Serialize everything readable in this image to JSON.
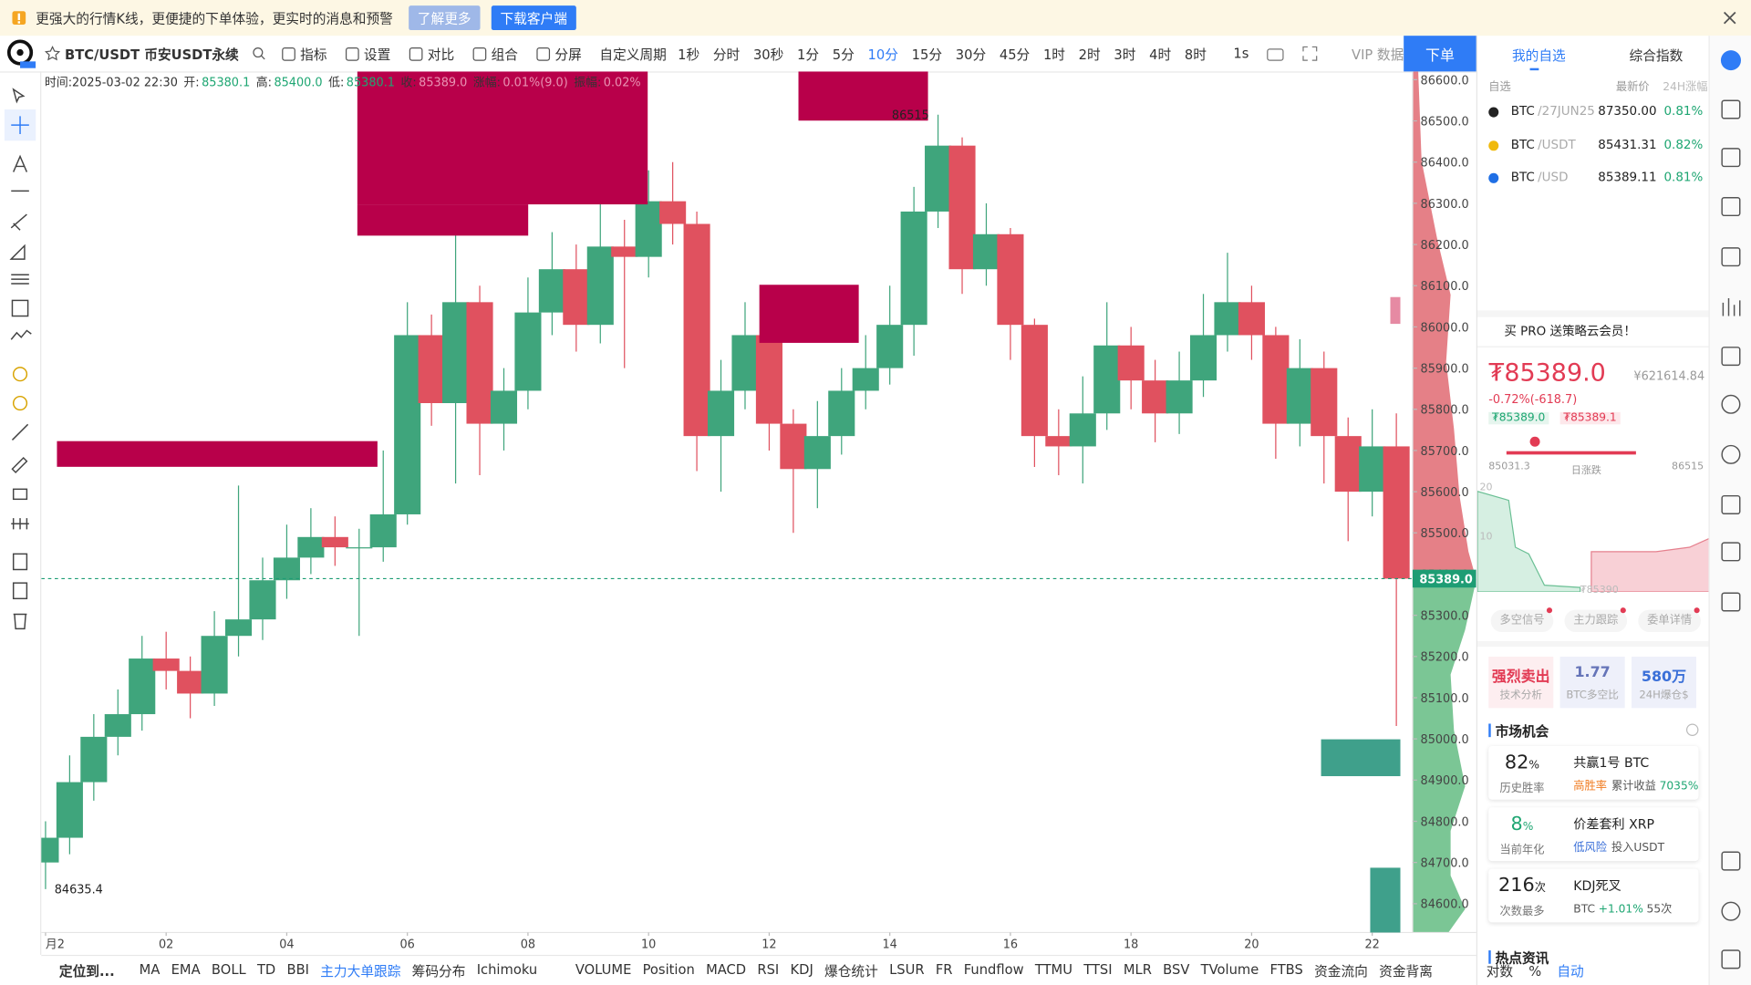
{
  "banner": {
    "text": "更强大的行情K线，更便捷的下单体验，更实时的消息和预警",
    "learn_more": "了解更多",
    "download": "下载客户端"
  },
  "toolbar": {
    "symbol": "BTC/USDT 币安USDT永续",
    "tools": [
      "指标",
      "设置",
      "对比",
      "组合",
      "分屏"
    ],
    "custom_period": "自定义周期",
    "periods": [
      "1秒",
      "分时",
      "30秒",
      "1分",
      "5分",
      "10分",
      "15分",
      "30分",
      "45分",
      "1时",
      "2时",
      "3时",
      "4时",
      "8时"
    ],
    "active_period": "10分",
    "realtime": "1s",
    "vip": "VIP 数据",
    "order": "下单"
  },
  "chart_info": {
    "time": "时间:2025-03-02 22:30",
    "open_label": "开:",
    "open": "85380.1",
    "high_label": "高:",
    "high": "85400.0",
    "low_label": "低:",
    "low": "85380.1",
    "close_label": "收:",
    "close": "85389.0",
    "change_label": "涨幅:",
    "change": "0.01%(9.0)",
    "amp_label": "振幅:",
    "amp": "0.02%"
  },
  "chart_data": {
    "type": "candlestick",
    "up_color": "#3fa57c",
    "down_color": "#e0515f",
    "grid": false,
    "x": [
      0,
      0.4,
      0.8,
      1.2,
      1.6,
      2,
      2.4,
      2.8,
      3.2,
      3.6,
      4,
      4.4,
      4.8,
      5.2,
      5.6,
      6,
      6.4,
      6.8,
      7.2,
      7.6,
      8,
      8.4,
      8.8,
      9.2,
      9.6,
      10,
      10.4,
      10.8,
      11.2,
      11.6,
      12,
      12.4,
      12.8,
      13.2,
      13.6,
      14,
      14.4,
      14.8,
      15.2,
      15.6,
      16,
      16.4,
      16.8,
      17.2,
      17.6,
      18,
      18.4,
      18.8,
      19.2,
      19.6,
      20,
      20.4,
      20.8,
      21.2,
      21.6,
      22,
      22.4
    ],
    "open": [
      84700,
      84760,
      84895,
      85005,
      85060,
      85195,
      85165,
      85110,
      85250,
      85290,
      85385,
      85440,
      85490,
      85465,
      85465,
      85545,
      85980,
      85815,
      86060,
      85765,
      85845,
      86035,
      86140,
      86005,
      86195,
      86170,
      86305,
      86250,
      85735,
      85845,
      85980,
      85765,
      85655,
      85735,
      85845,
      85900,
      86005,
      86280,
      86440,
      86140,
      86225,
      86005,
      85735,
      85710,
      85790,
      85955,
      85870,
      85790,
      85870,
      85980,
      86060,
      85980,
      85765,
      85900,
      85735,
      85600,
      85710
    ],
    "high": [
      84800,
      84960,
      85060,
      85120,
      85250,
      85260,
      85200,
      85310,
      85615,
      85440,
      85520,
      85560,
      85540,
      85510,
      85700,
      86060,
      86030,
      86250,
      86100,
      85900,
      86120,
      86230,
      86200,
      86320,
      86260,
      86380,
      86400,
      86280,
      85920,
      86060,
      86000,
      85800,
      85820,
      85900,
      85980,
      86100,
      86340,
      86515,
      86460,
      86300,
      86240,
      86020,
      85800,
      85880,
      86060,
      86000,
      85920,
      85940,
      86080,
      86180,
      86100,
      86000,
      85970,
      85940,
      85780,
      85800,
      85790
    ],
    "low": [
      84635.4,
      84720,
      84850,
      84960,
      85020,
      85120,
      85050,
      85080,
      85200,
      85240,
      85340,
      85400,
      85420,
      85250,
      85430,
      85520,
      85760,
      85620,
      85640,
      85700,
      85800,
      85980,
      85940,
      85960,
      85900,
      86120,
      86200,
      85650,
      85600,
      85800,
      85700,
      85500,
      85560,
      85690,
      85800,
      85860,
      85930,
      86240,
      86080,
      86100,
      85920,
      85660,
      85640,
      85620,
      85750,
      85800,
      85720,
      85740,
      85830,
      85940,
      85920,
      85680,
      85710,
      85620,
      85480,
      85540,
      85031.3
    ],
    "close": [
      84760,
      84895,
      85005,
      85060,
      85195,
      85165,
      85110,
      85250,
      85290,
      85385,
      85440,
      85490,
      85465,
      85465,
      85545,
      85980,
      85815,
      86060,
      85765,
      85845,
      86035,
      86140,
      86005,
      86195,
      86170,
      86305,
      86250,
      85735,
      85845,
      85980,
      85765,
      85655,
      85735,
      85845,
      85900,
      86005,
      86280,
      86440,
      86140,
      86225,
      86005,
      85735,
      85710,
      85790,
      85955,
      85870,
      85790,
      85870,
      85980,
      86060,
      85980,
      85765,
      85900,
      85735,
      85600,
      85710,
      85389
    ],
    "xlim": [
      -0.07,
      22.67
    ],
    "xticks": [
      {
        "value": 0,
        "label": "月2"
      },
      {
        "value": 2,
        "label": "02"
      },
      {
        "value": 4,
        "label": "04"
      },
      {
        "value": 6,
        "label": "06"
      },
      {
        "value": 8,
        "label": "08"
      },
      {
        "value": 10,
        "label": "10"
      },
      {
        "value": 12,
        "label": "12"
      },
      {
        "value": 14,
        "label": "14"
      },
      {
        "value": 16,
        "label": "16"
      },
      {
        "value": 18,
        "label": "18"
      },
      {
        "value": 20,
        "label": "20"
      },
      {
        "value": 22,
        "label": "22"
      }
    ],
    "ylim": [
      84530,
      86620
    ],
    "yticks": [
      {
        "value": 84600,
        "label": "84600.0"
      },
      {
        "value": 84700,
        "label": "84700.0"
      },
      {
        "value": 84800,
        "label": "84800.0"
      },
      {
        "value": 84900,
        "label": "84900.0"
      },
      {
        "value": 85000,
        "label": "85000.0"
      },
      {
        "value": 85100,
        "label": "85100.0"
      },
      {
        "value": 85200,
        "label": "85200.0"
      },
      {
        "value": 85300,
        "label": "85300.0"
      },
      {
        "value": 85400,
        "label": "85400.0"
      },
      {
        "value": 85500,
        "label": "85500.0"
      },
      {
        "value": 85600,
        "label": "85600.0"
      },
      {
        "value": 85700,
        "label": "85700.0"
      },
      {
        "value": 85800,
        "label": "85800.0"
      },
      {
        "value": 85900,
        "label": "85900.0"
      },
      {
        "value": 86000,
        "label": "86000.0"
      },
      {
        "value": 86100,
        "label": "86100.0"
      },
      {
        "value": 86200,
        "label": "86200.0"
      },
      {
        "value": 86300,
        "label": "86300.0"
      },
      {
        "value": 86400,
        "label": "86400.0"
      },
      {
        "value": 86500,
        "label": "86500.0"
      },
      {
        "value": 86600,
        "label": "86600.0"
      }
    ],
    "last_price": {
      "value": 85389,
      "label": "85389.0"
    },
    "last_price_color": "#1e9d74",
    "max_marker": 86515,
    "min_marker": 84635.4
  },
  "bottom_bar": {
    "locate": "定位到...",
    "indicators": [
      "MA",
      "EMA",
      "BOLL",
      "TD",
      "BBI",
      "主力大单跟踪",
      "筹码分布",
      "Ichimoku"
    ],
    "active": "主力大单跟踪",
    "sub_indicators": [
      "VOLUME",
      "Position",
      "MACD",
      "RSI",
      "KDJ",
      "爆仓统计",
      "LSUR",
      "FR",
      "Fundflow",
      "TTMU",
      "TTSI",
      "MLR",
      "BSV",
      "TVolume",
      "FTBS",
      "资金流向",
      "资金背离"
    ],
    "log": "对数",
    "percent": "%",
    "auto": "自动"
  },
  "watchlist": {
    "tabs": [
      "我的自选",
      "综合指数"
    ],
    "filter": "自选",
    "col_price": "最新价",
    "col_change": "24H涨幅",
    "rows": [
      {
        "symbol": "BTC",
        "pair": "/27JUN25",
        "price": "87350.00",
        "change": "0.81%",
        "icon": "#222222"
      },
      {
        "symbol": "BTC",
        "pair": "/USDT",
        "price": "85431.31",
        "change": "0.82%",
        "icon": "#f0b90b"
      },
      {
        "symbol": "BTC",
        "pair": "/USD",
        "price": "85389.11",
        "change": "0.81%",
        "icon": "#1f6fe5"
      }
    ]
  },
  "promo": "买 PRO 送策略云会员！",
  "ticker": {
    "price": "₮85389.0",
    "cny": "¥621614.84",
    "change": "-0.72%(-618.7)",
    "bid": "₮85389.0",
    "ask": "₮85389.1",
    "low": "85031.3",
    "range_label": "日涨跌",
    "high": "86515",
    "depth_top": "20",
    "depth_mid": "10",
    "depth_price": "₮85390",
    "tabs": [
      "多空信号",
      "主力跟踪",
      "委单详情"
    ]
  },
  "stats": [
    {
      "value": "强烈卖出",
      "label": "技术分析",
      "color": "#e23b54",
      "bg": "#fdeef0"
    },
    {
      "value": "1.77",
      "label": "BTC多空比",
      "color": "#6574b8",
      "bg": "#eef0fa"
    },
    {
      "value": "580万",
      "label": "24H爆仓$",
      "color": "#3a6fd8",
      "bg": "#eef0fa"
    }
  ],
  "market": {
    "title": "市场机会",
    "items": [
      {
        "value": "82",
        "unit": "%",
        "caption": "历史胜率",
        "color": "#222222",
        "name": "共赢1号 BTC",
        "tag": "高胜率",
        "tag_color": "#f07c22",
        "detail": "累计收益",
        "detail_value": "7035%"
      },
      {
        "value": "8",
        "unit": "%",
        "caption": "当前年化",
        "color": "#1ea672",
        "name": "价差套利 XRP",
        "tag": "低风险",
        "tag_color": "#3a6fd8",
        "detail": "投入USDT"
      },
      {
        "value": "216",
        "unit": "次",
        "caption": "次数最多",
        "color": "#222222",
        "name": "KDJ死叉",
        "detail": "BTC",
        "detail_value": "+1.01%",
        "extra": "55次"
      }
    ]
  },
  "news_title": "热点资讯"
}
